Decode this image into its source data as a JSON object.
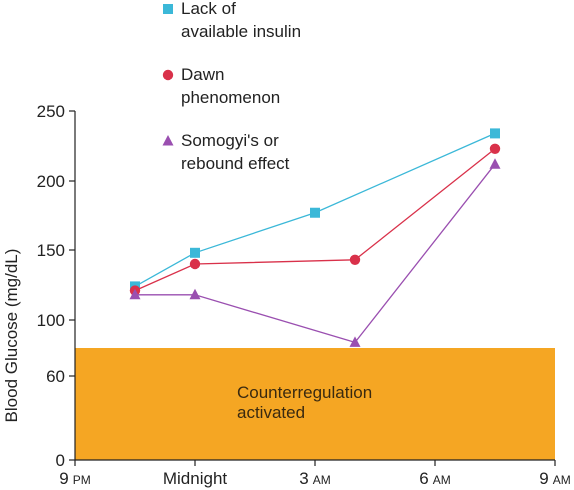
{
  "chart_data": {
    "type": "line",
    "ylabel": "Blood Glucose (mg/dL)",
    "xlabel": "",
    "x_ticks": [
      {
        "main": "9",
        "suffix": "PM"
      },
      {
        "main": "Midnight",
        "suffix": ""
      },
      {
        "main": "3",
        "suffix": "AM"
      },
      {
        "main": "6",
        "suffix": "AM"
      },
      {
        "main": "9",
        "suffix": "AM"
      }
    ],
    "x_tick_hours": [
      0,
      3,
      6,
      9,
      12
    ],
    "y_ticks": [
      "0",
      "60",
      "100",
      "150",
      "200",
      "250"
    ],
    "y_tick_values": [
      0,
      60,
      100,
      150,
      200,
      250
    ],
    "xlim": [
      0,
      12
    ],
    "ylim": [
      0,
      250
    ],
    "grid": false,
    "legend_position": "top-right",
    "shaded_region": {
      "label_line1": "Counterregulation",
      "label_line2": "activated",
      "y_min": 0,
      "y_max": 80,
      "color": "#F5A623"
    },
    "series": [
      {
        "name_line1": "Lack of",
        "name_line2": "available insulin",
        "marker": "square",
        "color": "#3BB8D8",
        "x": [
          1.5,
          3,
          6,
          10.5
        ],
        "y": [
          124,
          148,
          177,
          234
        ]
      },
      {
        "name_line1": "Dawn",
        "name_line2": "phenomenon",
        "marker": "circle",
        "color": "#D9314A",
        "x": [
          1.5,
          3,
          7,
          10.5
        ],
        "y": [
          121,
          140,
          143,
          223
        ]
      },
      {
        "name_line1": "Somogyi's or",
        "name_line2": "rebound effect",
        "marker": "triangle",
        "color": "#9A4FB0",
        "x": [
          1.5,
          3,
          7,
          10.5
        ],
        "y": [
          118,
          118,
          84,
          212
        ]
      }
    ]
  }
}
